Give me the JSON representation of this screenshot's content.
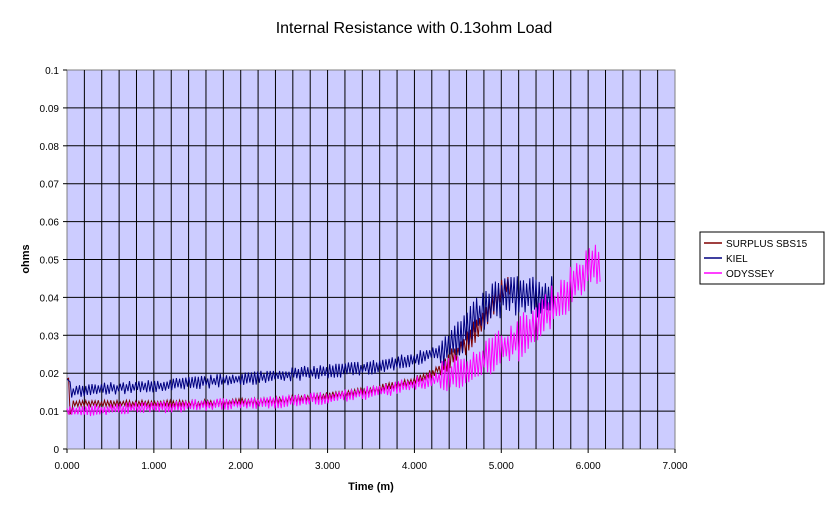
{
  "chart_data": {
    "type": "line",
    "title": "Internal Resistance with 0.13ohm Load",
    "xlabel": "Time (m)",
    "ylabel": "ohms",
    "xlim": [
      0,
      7
    ],
    "ylim": [
      0,
      0.1
    ],
    "x_ticks": [
      "0.000",
      "1.000",
      "2.000",
      "3.000",
      "4.000",
      "5.000",
      "6.000",
      "7.000"
    ],
    "y_ticks": [
      "0",
      "0.01",
      "0.02",
      "0.03",
      "0.04",
      "0.05",
      "0.06",
      "0.07",
      "0.08",
      "0.09",
      "0.1"
    ],
    "grid": true,
    "legend_position": "right",
    "plot_background": "#ccccff",
    "series": [
      {
        "name": "SURPLUS SBS15",
        "color": "#800000",
        "noise": 0.0015,
        "points": [
          [
            0.0,
            0.018
          ],
          [
            0.02,
            0.02
          ],
          [
            0.04,
            0.006
          ],
          [
            0.06,
            0.012
          ],
          [
            0.5,
            0.012
          ],
          [
            1.0,
            0.012
          ],
          [
            1.5,
            0.012
          ],
          [
            2.0,
            0.0125
          ],
          [
            2.5,
            0.013
          ],
          [
            3.0,
            0.014
          ],
          [
            3.5,
            0.0155
          ],
          [
            3.8,
            0.017
          ],
          [
            4.0,
            0.018
          ],
          [
            4.2,
            0.02
          ],
          [
            4.4,
            0.023
          ],
          [
            4.6,
            0.028
          ],
          [
            4.8,
            0.034
          ],
          [
            4.95,
            0.04
          ],
          [
            5.1,
            0.044
          ]
        ]
      },
      {
        "name": "KIEL",
        "color": "#000080",
        "noise": 0.0025,
        "points": [
          [
            0.0,
            0.017
          ],
          [
            0.02,
            0.02
          ],
          [
            0.04,
            0.015
          ],
          [
            0.5,
            0.016
          ],
          [
            1.0,
            0.0165
          ],
          [
            1.5,
            0.0175
          ],
          [
            2.0,
            0.0185
          ],
          [
            2.5,
            0.0195
          ],
          [
            3.0,
            0.0205
          ],
          [
            3.5,
            0.0215
          ],
          [
            4.0,
            0.0235
          ],
          [
            4.3,
            0.026
          ],
          [
            4.5,
            0.029
          ],
          [
            4.7,
            0.034
          ],
          [
            4.9,
            0.039
          ],
          [
            5.1,
            0.041
          ],
          [
            5.3,
            0.04
          ],
          [
            5.5,
            0.04
          ],
          [
            5.6,
            0.041
          ]
        ]
      },
      {
        "name": "ODYSSEY",
        "color": "#ff00ff",
        "noise": 0.0028,
        "points": [
          [
            0.0,
            0.01
          ],
          [
            0.5,
            0.0105
          ],
          [
            1.0,
            0.011
          ],
          [
            1.5,
            0.0115
          ],
          [
            2.0,
            0.012
          ],
          [
            2.5,
            0.0125
          ],
          [
            3.0,
            0.0135
          ],
          [
            3.5,
            0.015
          ],
          [
            4.0,
            0.017
          ],
          [
            4.3,
            0.019
          ],
          [
            4.6,
            0.021
          ],
          [
            4.9,
            0.025
          ],
          [
            5.2,
            0.029
          ],
          [
            5.5,
            0.035
          ],
          [
            5.7,
            0.04
          ],
          [
            5.9,
            0.045
          ],
          [
            6.0,
            0.047
          ],
          [
            6.15,
            0.049
          ]
        ]
      }
    ]
  }
}
